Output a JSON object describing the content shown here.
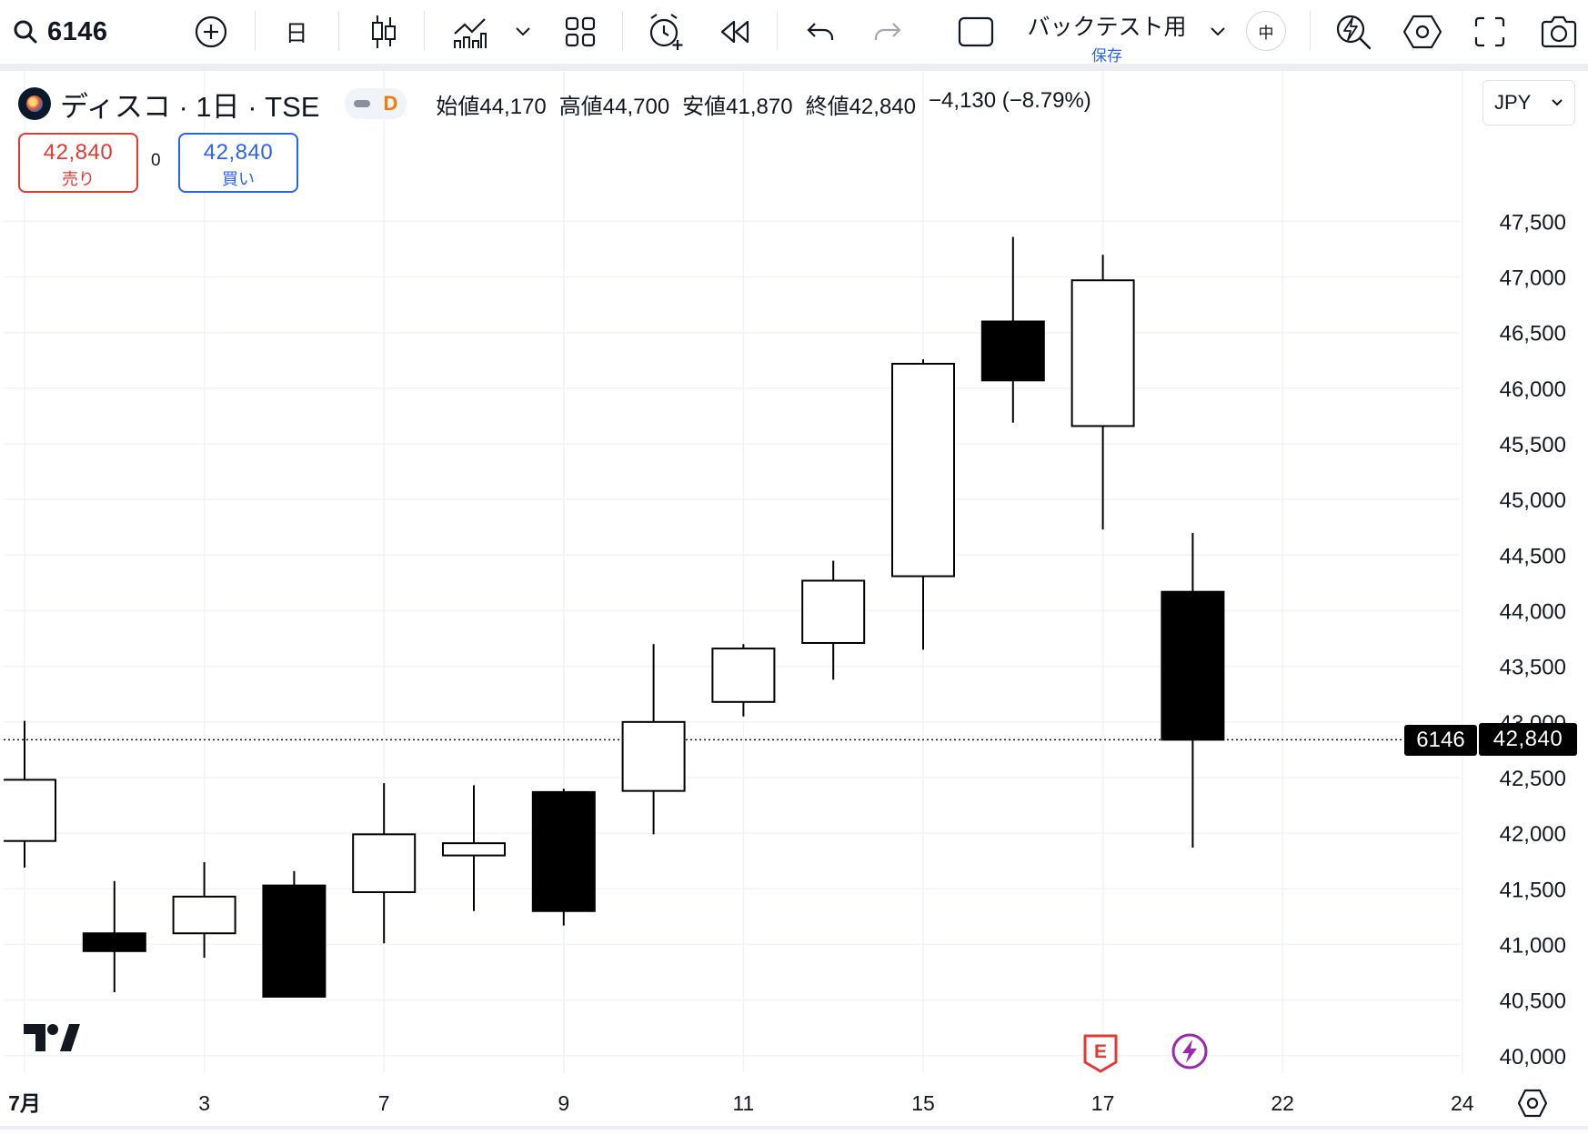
{
  "toolbar": {
    "symbol": "6146",
    "interval": "日",
    "layout_title": "バックテスト用",
    "layout_subtitle": "保存",
    "badge_mid": "中"
  },
  "legend": {
    "title": "ディスコ · 1日 · TSE",
    "status_letter": "D",
    "open_label": "始値",
    "open": "44,170",
    "high_label": "高値",
    "high": "44,700",
    "low_label": "安値",
    "low": "41,870",
    "close_label": "終値",
    "close": "42,840",
    "change": "−4,130 (−8.79%)"
  },
  "trade": {
    "sell_price": "42,840",
    "sell_label": "売り",
    "spread": "0",
    "buy_price": "42,840",
    "buy_label": "買い"
  },
  "currency": "JPY",
  "last_price_tag": {
    "symbol": "6146",
    "price": "42,840"
  },
  "markers": {
    "earnings": "E"
  },
  "colors": {
    "up_body": "#ffffff",
    "down_body": "#000000",
    "wick": "#000000",
    "grid": "#f0f3fa",
    "sell": "#e53935",
    "buy": "#2962ff",
    "earnings": "#e53935",
    "dividend": "#9c27b0"
  },
  "chart_data": {
    "type": "candlestick",
    "y_ticks": [
      "47,500",
      "47,000",
      "46,500",
      "46,000",
      "45,500",
      "45,000",
      "44,500",
      "44,000",
      "43,500",
      "43,000",
      "42,500",
      "42,000",
      "41,500",
      "41,000",
      "40,500",
      "40,000"
    ],
    "y_tick_values": [
      47500,
      47000,
      46500,
      46000,
      45500,
      45000,
      44500,
      44000,
      43500,
      43000,
      42500,
      42000,
      41500,
      41000,
      40500,
      40000
    ],
    "ylim": [
      39990,
      48100
    ],
    "x_ticks": [
      {
        "label": "7月",
        "slot": 0
      },
      {
        "label": "3",
        "slot": 2
      },
      {
        "label": "7",
        "slot": 4
      },
      {
        "label": "9",
        "slot": 6
      },
      {
        "label": "11",
        "slot": 8
      },
      {
        "label": "15",
        "slot": 10
      },
      {
        "label": "17",
        "slot": 12
      },
      {
        "label": "22",
        "slot": 14
      },
      {
        "label": "24",
        "slot": 16
      }
    ],
    "last_price": 42840,
    "candles": [
      {
        "slot": 0,
        "open": 41930,
        "high": 43010,
        "low": 41690,
        "close": 42480
      },
      {
        "slot": 1,
        "open": 41100,
        "high": 41570,
        "low": 40570,
        "close": 40940
      },
      {
        "slot": 2,
        "open": 41100,
        "high": 41740,
        "low": 40880,
        "close": 41430
      },
      {
        "slot": 3,
        "open": 41530,
        "high": 41660,
        "low": 40530,
        "close": 40530
      },
      {
        "slot": 4,
        "open": 41470,
        "high": 42450,
        "low": 41010,
        "close": 41990
      },
      {
        "slot": 5,
        "open": 41800,
        "high": 42430,
        "low": 41300,
        "close": 41910
      },
      {
        "slot": 6,
        "open": 42370,
        "high": 42400,
        "low": 41170,
        "close": 41300
      },
      {
        "slot": 7,
        "open": 42380,
        "high": 43700,
        "low": 41990,
        "close": 43000
      },
      {
        "slot": 8,
        "open": 43180,
        "high": 43700,
        "low": 43050,
        "close": 43660
      },
      {
        "slot": 9,
        "open": 43710,
        "high": 44450,
        "low": 43380,
        "close": 44270
      },
      {
        "slot": 10,
        "open": 44310,
        "high": 46260,
        "low": 43650,
        "close": 46220
      },
      {
        "slot": 11,
        "open": 46600,
        "high": 47360,
        "low": 45690,
        "close": 46070
      },
      {
        "slot": 12,
        "open": 45660,
        "high": 47200,
        "low": 44730,
        "close": 46970
      },
      {
        "slot": 13,
        "open": 44170,
        "high": 44700,
        "low": 41870,
        "close": 42840
      }
    ]
  }
}
